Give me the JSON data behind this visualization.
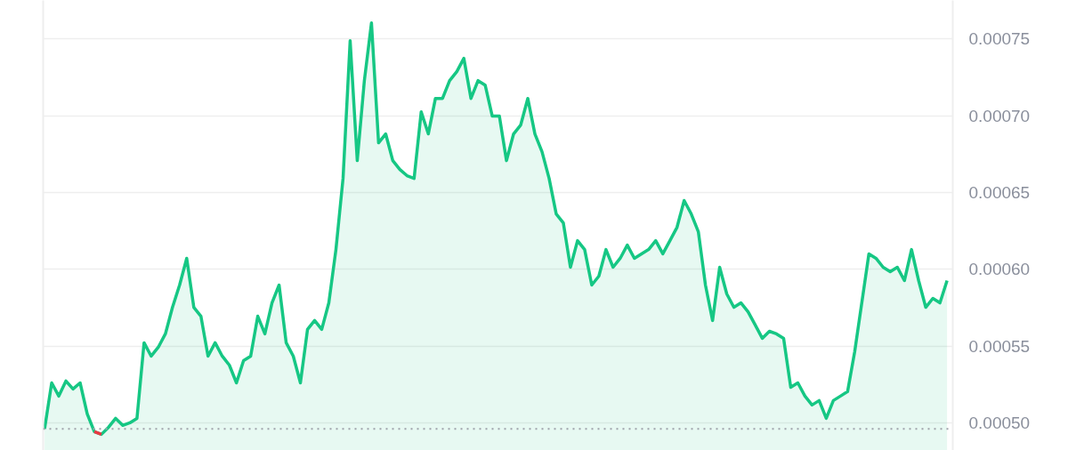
{
  "chart_data": {
    "type": "area",
    "categories": [
      null,
      null,
      null,
      null,
      null,
      null,
      null,
      null,
      null,
      null,
      null,
      null,
      null,
      null,
      null,
      null,
      null,
      null,
      null,
      null,
      null,
      null,
      null,
      null,
      null,
      null,
      null,
      null,
      null,
      null,
      null,
      null,
      null,
      null,
      null,
      null,
      null,
      null,
      null,
      null,
      null,
      null,
      null,
      null,
      null,
      null,
      null,
      null,
      null,
      null,
      null,
      null,
      null,
      null,
      null,
      null,
      null,
      null,
      null,
      null,
      null,
      null,
      null,
      null,
      null,
      null,
      null,
      null,
      null,
      null,
      null,
      null,
      null,
      null,
      null,
      null,
      null,
      null,
      null,
      null,
      null,
      null,
      null,
      null,
      null,
      null,
      null,
      null,
      null,
      null,
      null,
      null,
      null,
      null,
      null,
      null,
      null,
      null,
      null,
      null,
      null,
      null,
      null,
      null,
      null,
      null,
      null,
      null,
      null,
      null,
      null,
      null,
      null,
      null,
      null,
      null,
      null,
      null,
      null,
      null,
      null,
      null,
      null,
      null,
      null,
      null,
      null,
      null
    ],
    "series": [
      {
        "color": "#16c784",
        "values": [
          0.000496,
          0.000526,
          0.0005174,
          0.0005272,
          0.000522,
          0.000526,
          0.0005058,
          0.0004942,
          0.0004925,
          0.0004971,
          0.0005029,
          0.0004983,
          0.0005,
          0.0005029,
          0.0005521,
          0.0005434,
          0.0005492,
          0.0005579,
          0.0005752,
          0.0005897,
          0.0006071,
          0.0005752,
          0.0005694,
          0.0005434,
          0.0005521,
          0.0005434,
          0.0005376,
          0.000526,
          0.0005405,
          0.0005434,
          0.0005694,
          0.0005579,
          0.0005781,
          0.0005897,
          0.0005521,
          0.0005434,
          0.000526,
          0.0005608,
          0.0005666,
          0.0005608,
          0.0005781,
          0.0006128,
          0.0006591,
          0.0007488,
          0.0006707,
          0.0007228,
          0.0007604,
          0.0006823,
          0.0006881,
          0.0006707,
          0.0006649,
          0.0006609,
          0.0006591,
          0.0007025,
          0.0006881,
          0.0007112,
          0.0007112,
          0.0007228,
          0.0007286,
          0.0007373,
          0.0007112,
          0.0007228,
          0.0007199,
          0.0006997,
          0.0006997,
          0.0006707,
          0.0006881,
          0.0006939,
          0.0007112,
          0.0006881,
          0.0006765,
          0.0006591,
          0.000636,
          0.0006302,
          0.0006013,
          0.0006186,
          0.0006128,
          0.0005897,
          0.0005955,
          0.0006128,
          0.0006013,
          0.0006071,
          0.0006157,
          0.0006071,
          0.00061,
          0.0006128,
          0.0006186,
          0.00061,
          0.0006186,
          0.0006273,
          0.0006447,
          0.000636,
          0.0006244,
          0.0005897,
          0.0005666,
          0.0006013,
          0.0005839,
          0.0005752,
          0.0005781,
          0.0005723,
          0.0005637,
          0.000555,
          0.0005596,
          0.0005579,
          0.000555,
          0.0005231,
          0.000526,
          0.0005174,
          0.0005116,
          0.0005145,
          0.0005029,
          0.0005145,
          0.0005174,
          0.0005203,
          0.0005463,
          0.0005781,
          0.00061,
          0.0006071,
          0.0006013,
          0.0005984,
          0.0006013,
          0.0005926,
          0.0006128,
          0.0005926,
          0.0005752,
          0.000581,
          0.0005781,
          0.0005926
        ]
      },
      {
        "type": "line",
        "color": "#ea3943",
        "values": [
          null,
          null,
          null,
          null,
          null,
          null,
          null,
          0.0004942,
          0.0004925,
          null,
          null,
          null,
          null,
          null,
          null,
          null,
          null,
          null,
          null,
          null,
          null,
          null,
          null,
          null,
          null,
          null,
          null,
          null,
          null,
          null,
          null,
          null,
          null,
          null,
          null,
          null,
          null,
          null,
          null,
          null,
          null,
          null,
          null,
          null,
          null,
          null,
          null,
          null,
          null,
          null,
          null,
          null,
          null,
          null,
          null,
          null,
          null,
          null,
          null,
          null,
          null,
          null,
          null,
          null,
          null,
          null,
          null,
          null,
          null,
          null,
          null,
          null,
          null,
          null,
          null,
          null,
          null,
          null,
          null,
          null,
          null,
          null,
          null,
          null,
          null,
          null,
          null,
          null,
          null,
          null,
          null,
          null,
          null,
          null,
          null,
          null,
          null,
          null,
          null,
          null,
          null,
          null,
          null,
          null,
          null,
          null,
          null,
          null,
          null,
          null,
          null,
          null,
          null,
          null,
          null,
          null,
          null,
          null,
          null,
          null,
          null,
          null,
          null,
          null,
          null,
          null,
          null,
          null
        ]
      }
    ],
    "ylim": [
      0.000482,
      0.000775
    ],
    "yticks": [
      {
        "value": 0.0005,
        "label": "0.00050"
      },
      {
        "value": 0.00055,
        "label": "0.00055"
      },
      {
        "value": 0.0006,
        "label": "0.00060"
      },
      {
        "value": 0.00065,
        "label": "0.00065"
      },
      {
        "value": 0.0007,
        "label": "0.00070"
      },
      {
        "value": 0.00075,
        "label": "0.00075"
      }
    ],
    "ref_lines": [
      {
        "axis": "y",
        "value": 0.000496,
        "color": "#a0a3ab",
        "line_style": "dotted"
      }
    ],
    "grid": "y",
    "tick_labels": "y",
    "line_style": "solid"
  }
}
